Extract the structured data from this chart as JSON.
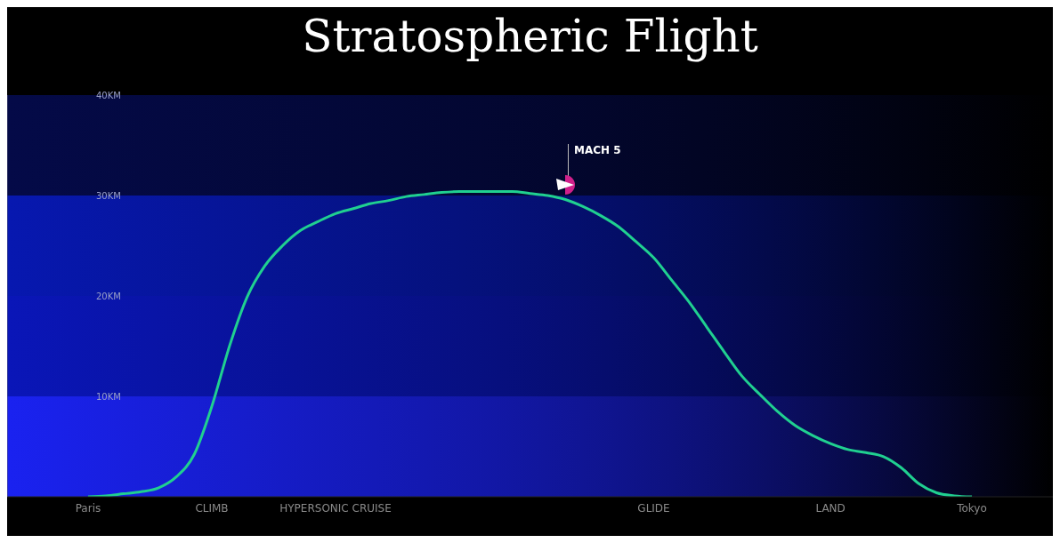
{
  "chart_data": {
    "type": "line",
    "title": "Stratospheric Flight",
    "categories": [
      "Paris",
      null,
      null,
      null,
      null,
      null,
      null,
      "CLIMB",
      null,
      null,
      null,
      null,
      null,
      null,
      "HYPERSONIC CRUISE",
      null,
      null,
      null,
      null,
      null,
      null,
      null,
      null,
      null,
      null,
      null,
      null,
      null,
      null,
      null,
      null,
      null,
      "GLIDE",
      null,
      null,
      null,
      null,
      null,
      null,
      null,
      null,
      null,
      "LAND",
      null,
      null,
      null,
      null,
      null,
      null,
      null,
      "Tokyo"
    ],
    "series": [
      {
        "color": "#20d090",
        "values": [
          0,
          0.1,
          0.3,
          0.5,
          0.9,
          2.0,
          4.2,
          9.0,
          15.0,
          19.9,
          23.0,
          25.0,
          26.5,
          27.4,
          28.2,
          28.7,
          29.2,
          29.5,
          29.9,
          30.1,
          30.3,
          30.4,
          30.4,
          30.4,
          30.4,
          30.2,
          30.0,
          29.6,
          28.9,
          28.0,
          26.9,
          25.4,
          23.8,
          21.6,
          19.4,
          16.9,
          14.4,
          12.0,
          10.2,
          8.5,
          7.1,
          6.1,
          5.3,
          4.7,
          4.4,
          4.0,
          2.9,
          1.3,
          0.4,
          0.1,
          0
        ]
      }
    ],
    "ylim": [
      0,
      40
    ],
    "yticks": [
      {
        "value": 10,
        "label": "10KM"
      },
      {
        "value": 20,
        "label": "20KM"
      },
      {
        "value": 30,
        "label": "30KM"
      },
      {
        "value": 40,
        "label": "40KM"
      }
    ],
    "bands": [
      {
        "axis": "y",
        "from": 0,
        "to": 10,
        "color": "#1a22f0"
      },
      {
        "axis": "y",
        "from": 10,
        "to": 20,
        "color": "#0a16b8"
      },
      {
        "axis": "y",
        "from": 20,
        "to": 30,
        "color": "#0718b0"
      },
      {
        "axis": "y",
        "from": 30,
        "to": 40,
        "color": "#040a48"
      }
    ],
    "annotations": [
      "MACH 5"
    ],
    "marker": "none",
    "line_style": "solid",
    "legend": false
  }
}
